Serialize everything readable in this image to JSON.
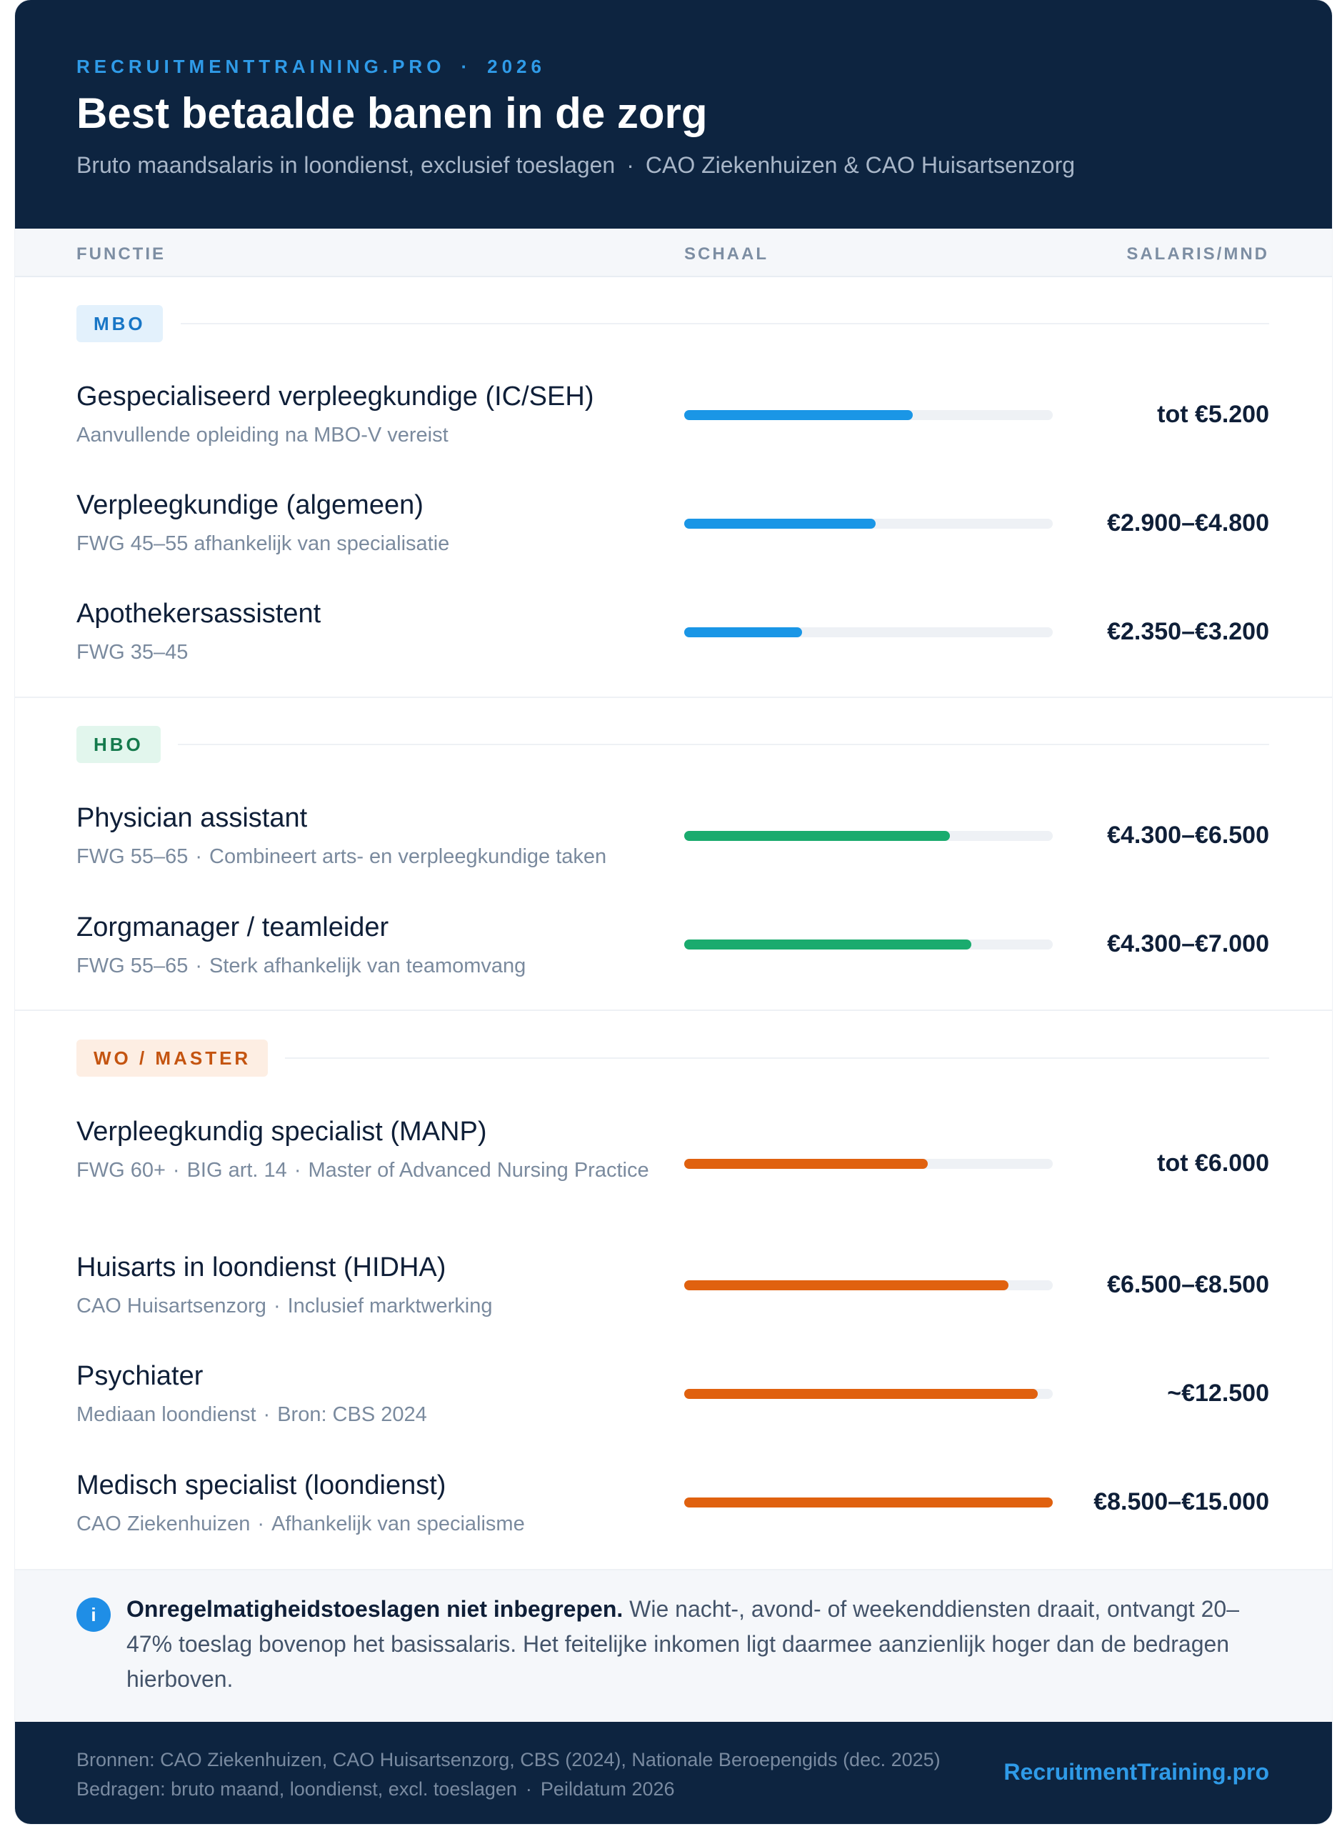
{
  "colors": {
    "header_bg": "#0d2440",
    "accent": "#2f9be8",
    "mbo": "#1a96e6",
    "hbo": "#1aab6e",
    "wo": "#e0610f",
    "track": "#eef1f5"
  },
  "header": {
    "kicker_site": "RECRUITMENTTRAINING.PRO",
    "kicker_sep": "·",
    "kicker_year": "2026",
    "title": "Best betaalde banen in de zorg",
    "subtitle_a": "Bruto maandsalaris in loondienst, exclusief toeslagen",
    "subtitle_sep": "·",
    "subtitle_b": "CAO Ziekenhuizen & CAO Huisartsenzorg"
  },
  "columns": {
    "function": "FUNCTIE",
    "scale": "SCHAAL",
    "salary": "SALARIS/MND"
  },
  "sections": [
    {
      "badge": "MBO",
      "rows": [
        {
          "title": "Gespecialiseerd verpleegkundige (IC/SEH)",
          "subtitle": "Aanvullende opleiding na MBO-V vereist",
          "salary": "tot €5.200",
          "scale": 0.62
        },
        {
          "title": "Verpleegkundige (algemeen)",
          "subtitle": "FWG 45–55 afhankelijk van specialisatie",
          "salary": "€2.900–€4.800",
          "scale": 0.52
        },
        {
          "title": "Apothekersassistent",
          "subtitle": "FWG 35–45",
          "salary": "€2.350–€3.200",
          "scale": 0.32
        }
      ]
    },
    {
      "badge": "HBO",
      "rows": [
        {
          "title": "Physician assistant",
          "subtitle_a": "FWG 55–65",
          "subtitle_b": "Combineert arts- en verpleegkundige taken",
          "salary": "€4.300–€6.500",
          "scale": 0.72
        },
        {
          "title": "Zorgmanager / teamleider",
          "subtitle_a": "FWG 55–65",
          "subtitle_b": "Sterk afhankelijk van teamomvang",
          "salary": "€4.300–€7.000",
          "scale": 0.78
        }
      ]
    },
    {
      "badge": "WO / MASTER",
      "rows": [
        {
          "title": "Verpleegkundig specialist (MANP)",
          "subtitle_a": "FWG 60+",
          "subtitle_b": "BIG art. 14",
          "subtitle_c": "Master of Advanced Nursing Practice",
          "salary": "tot €6.000",
          "scale": 0.66
        },
        {
          "title": "Huisarts in loondienst (HIDHA)",
          "subtitle_a": "CAO Huisartsenzorg",
          "subtitle_b": "Inclusief marktwerking",
          "salary": "€6.500–€8.500",
          "scale": 0.88
        },
        {
          "title": "Psychiater",
          "subtitle_a": "Mediaan loondienst",
          "subtitle_b": "Bron: CBS 2024",
          "salary": "~€12.500",
          "scale": 0.96
        },
        {
          "title": "Medisch specialist (loondienst)",
          "subtitle_a": "CAO Ziekenhuizen",
          "subtitle_b": "Afhankelijk van specialisme",
          "salary": "€8.500–€15.000",
          "scale": 1.0
        }
      ]
    }
  ],
  "subtitle_sep": "·",
  "note": {
    "icon": "info-icon",
    "icon_glyph": "i",
    "bold": "Onregelmatigheidstoeslagen niet inbegrepen.",
    "text": " Wie nacht-, avond- of weekenddiensten draait, ontvangt 20–47% toeslag bovenop het basissalaris. Het feitelijke inkomen ligt daarmee aanzienlijk hoger dan de bedragen hierboven."
  },
  "footer": {
    "line1": "Bronnen: CAO Ziekenhuizen, CAO Huisartsenzorg, CBS (2024), Nationale Beroepengids (dec. 2025)",
    "line2_a": "Bedragen: bruto maand, loondienst, excl. toeslagen",
    "line2_sep": "·",
    "line2_b": "Peildatum 2026",
    "brand": "RecruitmentTraining.pro"
  }
}
